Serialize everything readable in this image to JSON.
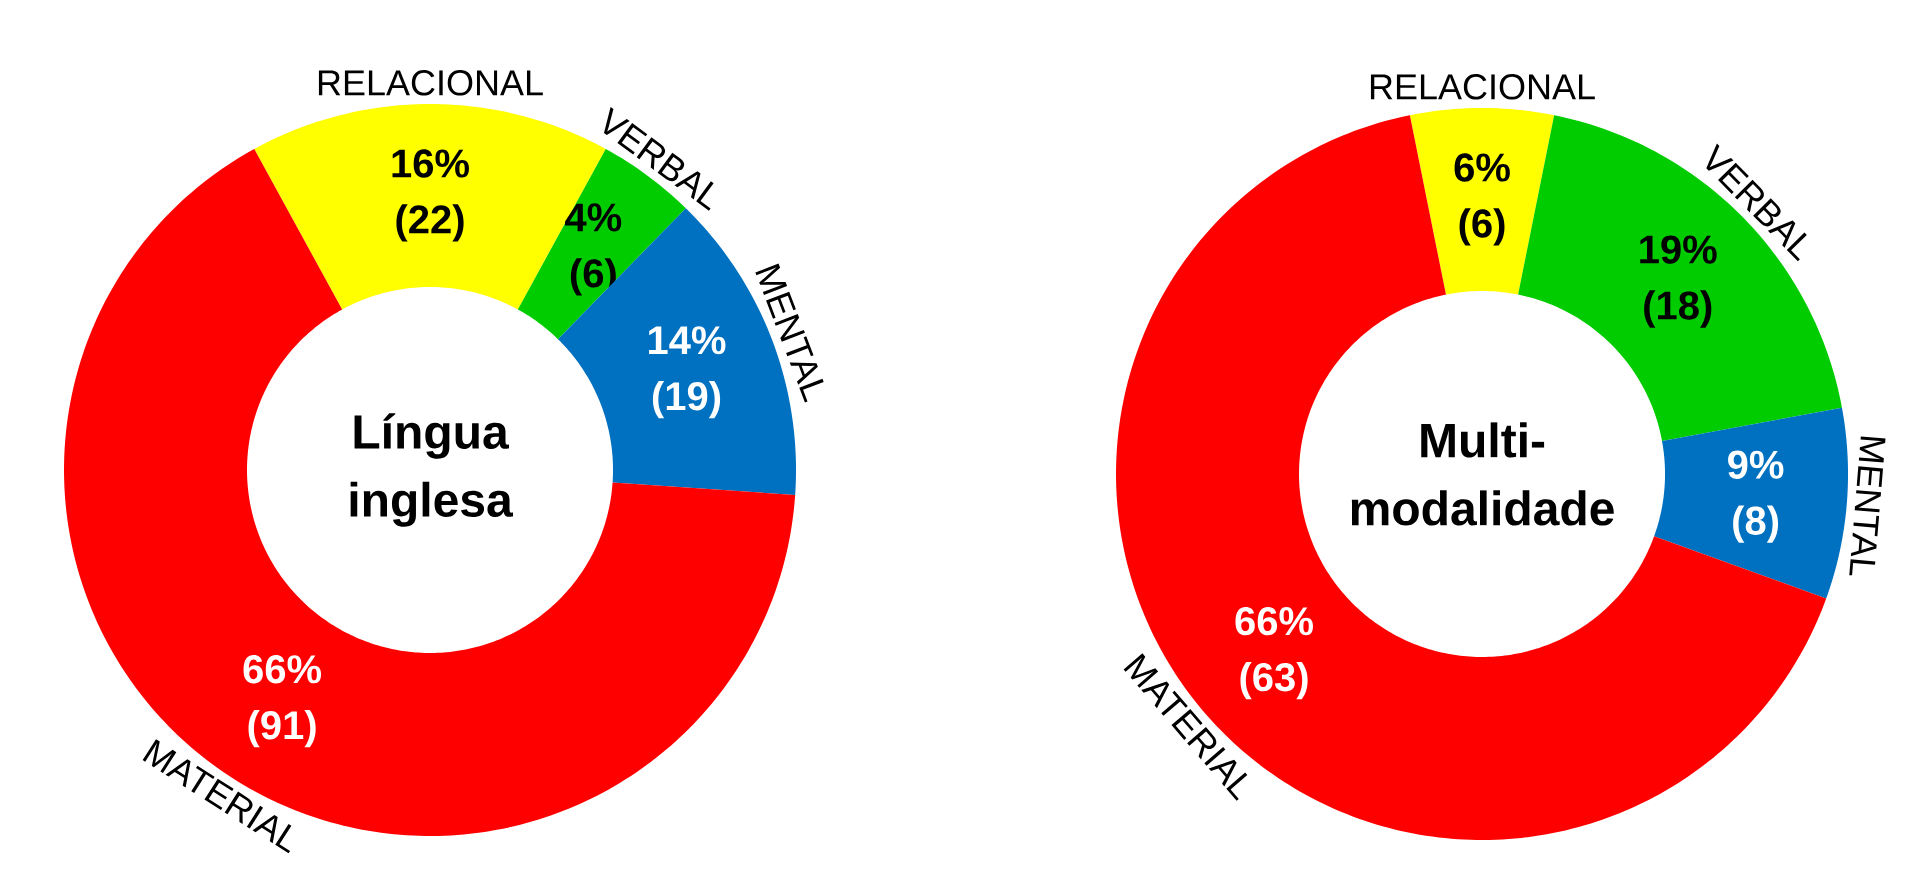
{
  "chart_data": [
    {
      "type": "donut",
      "title": "Língua inglesa",
      "categories": [
        "RELACIONAL",
        "VERBAL",
        "MENTAL",
        "MATERIAL"
      ],
      "values": [
        22,
        6,
        19,
        91
      ],
      "value_labels": [
        "16% (22)",
        "4% (6)",
        "14% (19)",
        "66% (91)"
      ],
      "colors": [
        "#ffff00",
        "#00cc00",
        "#0070c0",
        "#ff0000"
      ]
    },
    {
      "type": "donut",
      "title": "Multi-modalidade",
      "categories": [
        "RELACIONAL",
        "VERBAL",
        "MENTAL",
        "MATERIAL"
      ],
      "values": [
        6,
        18,
        8,
        63
      ],
      "value_labels": [
        "6% (6)",
        "19% (18)",
        "9% (8)",
        "66% (63)"
      ],
      "colors": [
        "#ffff00",
        "#00cc00",
        "#0070c0",
        "#ff0000"
      ]
    }
  ]
}
